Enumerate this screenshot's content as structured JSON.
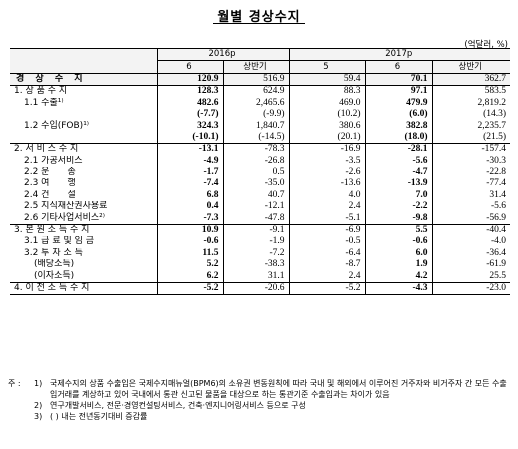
{
  "title": "월별 경상수지",
  "unit": "(억달러, %)",
  "header": {
    "year_2016": "2016p",
    "year_2017": "2017p",
    "cols": [
      "6",
      "상반기",
      "5",
      "6",
      "상반기"
    ]
  },
  "rows": [
    {
      "label": "경 상 수 지",
      "level": 0,
      "values": [
        "120.9",
        "516.9",
        "59.4",
        "70.1",
        "362.7"
      ],
      "bold": [
        true,
        false,
        false,
        true,
        false
      ]
    },
    {
      "label": "1. 상 품 수 지",
      "level": 1,
      "values": [
        "128.3",
        "624.9",
        "88.3",
        "97.1",
        "583.5"
      ],
      "bold": [
        true,
        false,
        false,
        true,
        false
      ]
    },
    {
      "label": "1.1 수출¹⁾",
      "level": 2,
      "values": [
        "482.6",
        "2,465.6",
        "469.0",
        "479.9",
        "2,819.2"
      ],
      "bold": [
        true,
        false,
        false,
        true,
        false
      ]
    },
    {
      "label": "",
      "level": 2,
      "values": [
        "(-7.7)",
        "(-9.9)",
        "(10.2)",
        "(6.0)",
        "(14.3)"
      ],
      "bold": [
        true,
        false,
        false,
        true,
        false
      ]
    },
    {
      "label": "1.2 수입(FOB)¹⁾",
      "level": 2,
      "values": [
        "324.3",
        "1,840.7",
        "380.6",
        "382.8",
        "2,235.7"
      ],
      "bold": [
        true,
        false,
        false,
        true,
        false
      ]
    },
    {
      "label": "",
      "level": 2,
      "values": [
        "(-10.1)",
        "(-14.5)",
        "(20.1)",
        "(18.0)",
        "(21.5)"
      ],
      "bold": [
        true,
        false,
        false,
        true,
        false
      ]
    },
    {
      "label": "2. 서 비 스 수 지",
      "level": 1,
      "values": [
        "-13.1",
        "-78.3",
        "-16.9",
        "-28.1",
        "-157.4"
      ],
      "bold": [
        true,
        false,
        false,
        true,
        false
      ]
    },
    {
      "label": "2.1 가공서비스",
      "level": 2,
      "values": [
        "-4.9",
        "-26.8",
        "-3.5",
        "-5.6",
        "-30.3"
      ],
      "bold": [
        true,
        false,
        false,
        true,
        false
      ]
    },
    {
      "label": "2.2 운　　송",
      "level": 2,
      "values": [
        "-1.7",
        "0.5",
        "-2.6",
        "-4.7",
        "-22.8"
      ],
      "bold": [
        true,
        false,
        false,
        true,
        false
      ]
    },
    {
      "label": "2.3 여　　행",
      "level": 2,
      "values": [
        "-7.4",
        "-35.0",
        "-13.6",
        "-13.9",
        "-77.4"
      ],
      "bold": [
        true,
        false,
        false,
        true,
        false
      ]
    },
    {
      "label": "2.4 건　　설",
      "level": 2,
      "values": [
        "6.8",
        "40.7",
        "4.0",
        "7.0",
        "31.4"
      ],
      "bold": [
        true,
        false,
        false,
        true,
        false
      ]
    },
    {
      "label": "2.5 지식재산권사용료",
      "level": 2,
      "values": [
        "0.4",
        "-12.1",
        "2.4",
        "-2.2",
        "-5.6"
      ],
      "bold": [
        true,
        false,
        false,
        true,
        false
      ]
    },
    {
      "label": "2.6 기타사업서비스²⁾",
      "level": 2,
      "values": [
        "-7.3",
        "-47.8",
        "-5.1",
        "-9.8",
        "-56.9"
      ],
      "bold": [
        true,
        false,
        false,
        true,
        false
      ]
    },
    {
      "label": "3. 본 원 소 득 수 지",
      "level": 1,
      "values": [
        "10.9",
        "-9.1",
        "-6.9",
        "5.5",
        "-40.4"
      ],
      "bold": [
        true,
        false,
        false,
        true,
        false
      ]
    },
    {
      "label": "3.1 급 료 및 임 금",
      "level": 2,
      "values": [
        "-0.6",
        "-1.9",
        "-0.5",
        "-0.6",
        "-4.0"
      ],
      "bold": [
        true,
        false,
        false,
        true,
        false
      ]
    },
    {
      "label": "3.2 투 자 소 득",
      "level": 2,
      "values": [
        "11.5",
        "-7.2",
        "-6.4",
        "6.0",
        "-36.4"
      ],
      "bold": [
        true,
        false,
        false,
        true,
        false
      ]
    },
    {
      "label": "(배당소득)",
      "level": 3,
      "values": [
        "5.2",
        "-38.3",
        "-8.7",
        "1.9",
        "-61.9"
      ],
      "bold": [
        true,
        false,
        false,
        true,
        false
      ]
    },
    {
      "label": "(이자소득)",
      "level": 3,
      "values": [
        "6.2",
        "31.1",
        "2.4",
        "4.2",
        "25.5"
      ],
      "bold": [
        true,
        false,
        false,
        true,
        false
      ]
    },
    {
      "label": "4. 이 전 소 득 수 지",
      "level": 1,
      "values": [
        "-5.2",
        "-20.6",
        "-5.2",
        "-4.3",
        "-23.0"
      ],
      "bold": [
        true,
        false,
        false,
        true,
        false
      ]
    }
  ],
  "notes": {
    "mark": "주 :",
    "items": [
      {
        "num": "1)",
        "text": "국제수지의 상품 수출입은 국제수지매뉴얼(BPM6)의 소유권 변동원칙에 따라 국내 및 해외에서 이루어진 거주자와 비거주자 간 모든 수출입거래를 계상하고 있어 국내에서 통관 신고된 물품을 대상으로 하는 통관기준 수출입과는 차이가 있음"
      },
      {
        "num": "2)",
        "text": "연구개발서비스, 전문·경영컨설팅서비스, 건축·엔지니어링서비스 등으로 구성"
      },
      {
        "num": "3)",
        "text": "( ) 내는 전년동기대비 증감률"
      }
    ]
  }
}
